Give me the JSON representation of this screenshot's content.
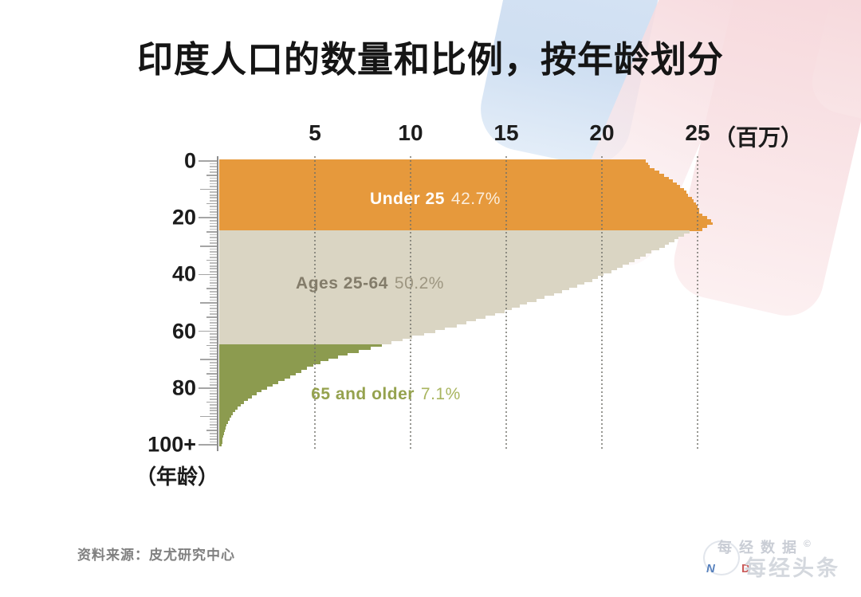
{
  "title": "印度人口的数量和比例，按年龄划分",
  "x_axis": {
    "tick_labels": [
      "5",
      "10",
      "15",
      "20",
      "25"
    ],
    "tick_values": [
      5,
      10,
      15,
      20,
      25
    ],
    "unit_label": "（百万）"
  },
  "y_axis": {
    "tick_labels": [
      "0",
      "20",
      "40",
      "60",
      "80",
      "100+"
    ],
    "tick_values": [
      0,
      20,
      40,
      60,
      80,
      100
    ],
    "unit_label": "（年龄）"
  },
  "segments": [
    {
      "name": "under-25",
      "label": "Under 25",
      "pct": "42.7%",
      "age_min": 0,
      "age_max": 24,
      "bar_color": "#E6993C",
      "label_color": "#FFFFFF",
      "pct_color": "rgba(255,255,255,0.82)"
    },
    {
      "name": "ages-25-64",
      "label": "Ages 25-64",
      "pct": "50.2%",
      "age_min": 25,
      "age_max": 64,
      "bar_color": "#DAD5C3",
      "label_color": "#837C6A",
      "pct_color": "#9D9681"
    },
    {
      "name": "65-and-older",
      "label": "65 and older",
      "pct": "7.1%",
      "age_min": 65,
      "age_max": 100,
      "bar_color": "#8C9B4F",
      "label_color": "#95A24E",
      "pct_color": "#A9B55F"
    }
  ],
  "source": "资料来源：皮尤研究中心",
  "watermark": {
    "line1": "每经数据",
    "copyright": "©",
    "line2": "每经头条",
    "letter_blue": "N",
    "letter_red": "D"
  },
  "chart_data": {
    "type": "bar",
    "orientation": "horizontal",
    "title": "印度人口的数量和比例，按年龄划分 (India population count and share, by age)",
    "xlabel": "人口（百万） population (millions)",
    "ylabel": "年龄 (age, single years 0–100+)",
    "xlim": [
      0,
      25
    ],
    "grid": "dotted-vertical-at-5M-intervals",
    "x": [
      0,
      1,
      2,
      3,
      4,
      5,
      6,
      7,
      8,
      9,
      10,
      11,
      12,
      13,
      14,
      15,
      16,
      17,
      18,
      19,
      20,
      21,
      22,
      23,
      24,
      25,
      26,
      27,
      28,
      29,
      30,
      31,
      32,
      33,
      34,
      35,
      36,
      37,
      38,
      39,
      40,
      41,
      42,
      43,
      44,
      45,
      46,
      47,
      48,
      49,
      50,
      51,
      52,
      53,
      54,
      55,
      56,
      57,
      58,
      59,
      60,
      61,
      62,
      63,
      64,
      65,
      66,
      67,
      68,
      69,
      70,
      71,
      72,
      73,
      74,
      75,
      76,
      77,
      78,
      79,
      80,
      81,
      82,
      83,
      84,
      85,
      86,
      87,
      88,
      89,
      90,
      91,
      92,
      93,
      94,
      95,
      96,
      97,
      98,
      99,
      100
    ],
    "values": [
      22.3,
      22.4,
      22.5,
      22.75,
      23.0,
      23.25,
      23.5,
      23.7,
      23.9,
      24.1,
      24.3,
      24.4,
      24.5,
      24.7,
      24.8,
      24.9,
      25.0,
      25.1,
      25.1,
      25.25,
      25.5,
      25.7,
      25.8,
      25.5,
      25.25,
      24.6,
      24.3,
      24.0,
      23.8,
      23.5,
      23.3,
      23.0,
      22.6,
      22.3,
      22.0,
      21.7,
      21.4,
      21.1,
      20.8,
      20.5,
      20.1,
      19.8,
      19.5,
      19.1,
      18.7,
      18.3,
      17.9,
      17.5,
      17.0,
      16.6,
      16.1,
      15.7,
      15.3,
      14.9,
      14.4,
      13.9,
      13.4,
      12.9,
      12.4,
      11.8,
      11.3,
      10.7,
      10.1,
      9.6,
      9.0,
      8.5,
      7.9,
      7.3,
      6.7,
      6.2,
      5.7,
      5.3,
      4.9,
      4.6,
      4.3,
      4.0,
      3.7,
      3.4,
      3.1,
      2.8,
      2.5,
      2.2,
      1.95,
      1.7,
      1.5,
      1.3,
      1.12,
      0.97,
      0.84,
      0.72,
      0.62,
      0.53,
      0.46,
      0.39,
      0.34,
      0.29,
      0.25,
      0.21,
      0.18,
      0.15,
      0.13
    ],
    "groups": [
      {
        "label": "Under 25",
        "share_pct": 42.7,
        "ages": "0-24",
        "color": "#E6993C"
      },
      {
        "label": "Ages 25-64",
        "share_pct": 50.2,
        "ages": "25-64",
        "color": "#DAD5C3"
      },
      {
        "label": "65 and older",
        "share_pct": 7.1,
        "ages": "65-100+",
        "color": "#8C9B4F"
      }
    ]
  }
}
